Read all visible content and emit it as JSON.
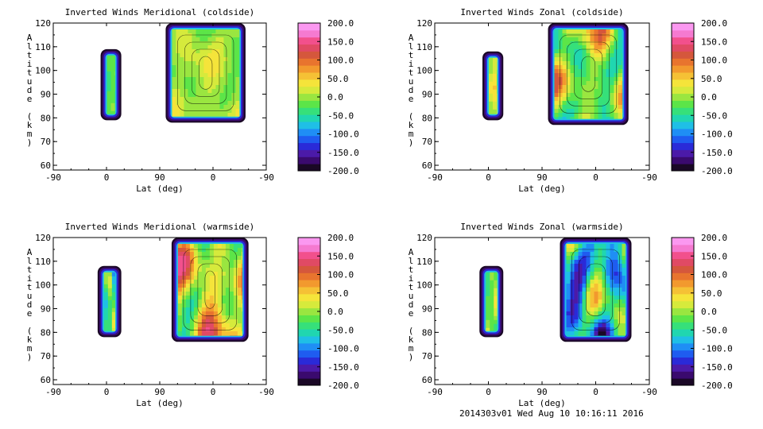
{
  "footer": {
    "text": "2014303v01 Wed Aug 10 10:16:11 2016"
  },
  "colorbar": {
    "tick_labels": [
      "200.0",
      "150.0",
      "100.0",
      "50.0",
      "0.0",
      "-50.0",
      "-100.0",
      "-150.0",
      "-200.0"
    ],
    "range": [
      -200,
      200
    ],
    "colors": [
      "#1a0826",
      "#3a0a6e",
      "#4b1aa8",
      "#2a2ad8",
      "#1f5cf0",
      "#1f8ef5",
      "#1fbfe6",
      "#20d6b0",
      "#36e07a",
      "#5ce548",
      "#9ae640",
      "#d6ea3c",
      "#f5e43a",
      "#f5c135",
      "#f2992e",
      "#e8742e",
      "#d5573c",
      "#e04a64",
      "#f2508c",
      "#f57ad0",
      "#fb98f0"
    ]
  },
  "chart_data": [
    {
      "type": "heatmap",
      "title": "Inverted Winds Meridional (coldside)",
      "xlabel": "Lat (deg)",
      "ylabel": "Altitude (km)",
      "x_tick_labels": [
        "-90",
        "0",
        "90",
        "0",
        "-90"
      ],
      "xlim": [
        -90,
        270
      ],
      "y_ticks": [
        60,
        70,
        80,
        90,
        100,
        110,
        120
      ],
      "ylim": [
        58,
        120
      ],
      "colorbar_range": [
        -200,
        200
      ],
      "regions": [
        {
          "x": [
            -10,
            25
          ],
          "alt": [
            79,
            109
          ],
          "mean": -20,
          "min": -180,
          "max": 5
        },
        {
          "x": [
            100,
            235
          ],
          "alt": [
            78,
            120
          ],
          "mean": 5,
          "min": -200,
          "max": 40
        }
      ]
    },
    {
      "type": "heatmap",
      "title": "Inverted Winds Zonal (coldside)",
      "xlabel": "Lat (deg)",
      "ylabel": "Altitude (km)",
      "x_tick_labels": [
        "-90",
        "0",
        "90",
        "0",
        "-90"
      ],
      "xlim": [
        -90,
        270
      ],
      "y_ticks": [
        60,
        70,
        80,
        90,
        100,
        110,
        120
      ],
      "ylim": [
        58,
        120
      ],
      "colorbar_range": [
        -200,
        200
      ],
      "regions": [
        {
          "x": [
            -10,
            25
          ],
          "alt": [
            79,
            108
          ],
          "mean": 20,
          "min": -180,
          "max": 60
        },
        {
          "x": [
            100,
            235
          ],
          "alt": [
            77,
            120
          ],
          "mean": 0,
          "min": -200,
          "max": 110
        }
      ]
    },
    {
      "type": "heatmap",
      "title": "Inverted Winds Meridional (warmside)",
      "xlabel": "Lat (deg)",
      "ylabel": "Altitude (km)",
      "x_tick_labels": [
        "-90",
        "0",
        "90",
        "0",
        "-90"
      ],
      "xlim": [
        -90,
        270
      ],
      "y_ticks": [
        60,
        70,
        80,
        90,
        100,
        110,
        120
      ],
      "ylim": [
        58,
        120
      ],
      "colorbar_range": [
        -200,
        200
      ],
      "regions": [
        {
          "x": [
            -15,
            25
          ],
          "alt": [
            78,
            108
          ],
          "mean": -30,
          "min": -200,
          "max": 30
        },
        {
          "x": [
            110,
            240
          ],
          "alt": [
            76,
            120
          ],
          "mean": 30,
          "min": -200,
          "max": 150
        }
      ]
    },
    {
      "type": "heatmap",
      "title": "Inverted Winds Zonal (warmside)",
      "xlabel": "Lat (deg)",
      "ylabel": "Altitude (km)",
      "x_tick_labels": [
        "-90",
        "0",
        "90",
        "0",
        "-90"
      ],
      "xlim": [
        -90,
        270
      ],
      "y_ticks": [
        60,
        70,
        80,
        90,
        100,
        110,
        120
      ],
      "ylim": [
        58,
        120
      ],
      "colorbar_range": [
        -200,
        200
      ],
      "regions": [
        {
          "x": [
            -15,
            25
          ],
          "alt": [
            78,
            108
          ],
          "mean": -10,
          "min": -180,
          "max": 40
        },
        {
          "x": [
            120,
            240
          ],
          "alt": [
            76,
            120
          ],
          "mean": -60,
          "min": -200,
          "max": 80
        }
      ]
    }
  ]
}
